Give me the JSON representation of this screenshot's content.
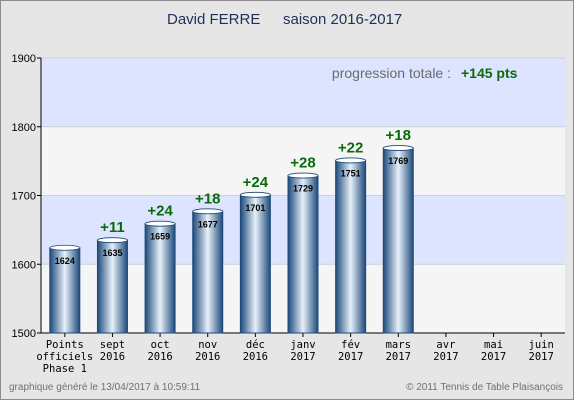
{
  "chart_data": {
    "type": "bar",
    "title_name": "David FERRE",
    "title_season": "saison 2016-2017",
    "progression_label": "progression totale :",
    "progression_value": "+145 pts",
    "categories": [
      [
        "Points",
        "officiels",
        "Phase 1"
      ],
      [
        "sept",
        "2016"
      ],
      [
        "oct",
        "2016"
      ],
      [
        "nov",
        "2016"
      ],
      [
        "déc",
        "2016"
      ],
      [
        "janv",
        "2017"
      ],
      [
        "fév",
        "2017"
      ],
      [
        "mars",
        "2017"
      ],
      [
        "avr",
        "2017"
      ],
      [
        "mai",
        "2017"
      ],
      [
        "juin",
        "2017"
      ]
    ],
    "values": [
      1624,
      1635,
      1659,
      1677,
      1701,
      1729,
      1751,
      1769,
      null,
      null,
      null
    ],
    "deltas": [
      null,
      "+11",
      "+24",
      "+18",
      "+24",
      "+28",
      "+22",
      "+18",
      null,
      null,
      null
    ],
    "ylim": [
      1500,
      1900
    ],
    "yticks": [
      1500,
      1600,
      1700,
      1800,
      1900
    ],
    "grid": true,
    "colors": {
      "bar_dark": "#1d4a7a",
      "bar_light": "#e8f0fa",
      "band_blue": "#dde4ff",
      "band_white": "#f5f5f5",
      "delta_green": "#0a6b0a"
    }
  },
  "footer": {
    "left": "graphique généré le 13/04/2017 à 10:59:11",
    "right": "© 2011 Tennis de Table Plaisançois"
  }
}
